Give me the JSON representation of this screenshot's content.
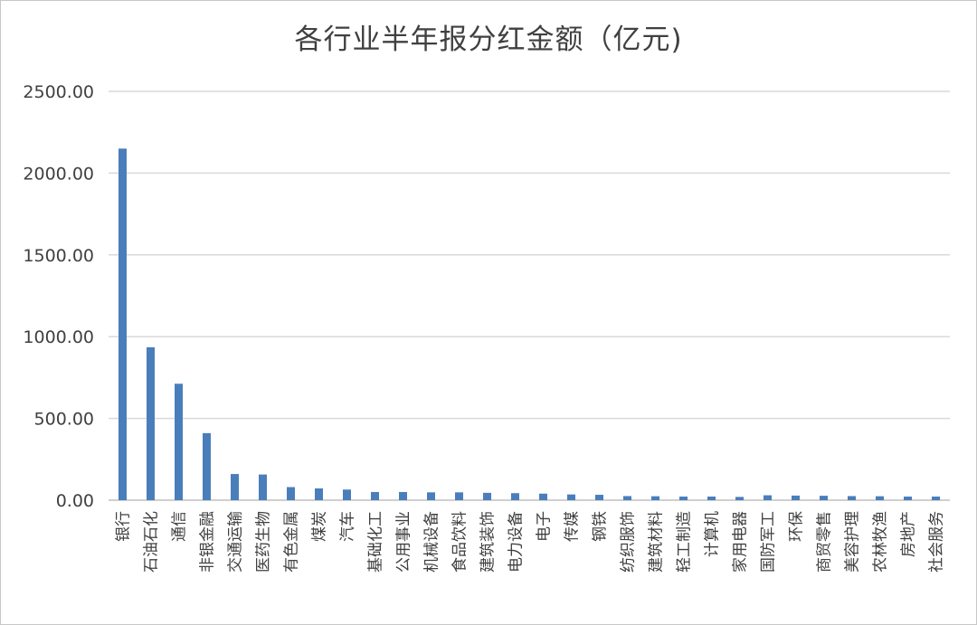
{
  "chart_data": {
    "type": "bar",
    "title": "各行业半年报分红金额（亿元)",
    "xlabel": "",
    "ylabel": "",
    "ylim": [
      0,
      2500
    ],
    "yticks": [
      "0.00",
      "500.00",
      "1000.00",
      "1500.00",
      "2000.00",
      "2500.00"
    ],
    "grid": true,
    "bar_color": "#4a7ebb",
    "grid_color": "#d9d9d9",
    "categories": [
      "银行",
      "石油石化",
      "通信",
      "非银金融",
      "交通运输",
      "医药生物",
      "有色金属",
      "煤炭",
      "汽车",
      "基础化工",
      "公用事业",
      "机械设备",
      "食品饮料",
      "建筑装饰",
      "电力设备",
      "电子",
      "传媒",
      "钢铁",
      "纺织服饰",
      "建筑材料",
      "轻工制造",
      "计算机",
      "家用电器",
      "国防军工",
      "环保",
      "商贸零售",
      "美容护理",
      "农林牧渔",
      "房地产",
      "社会服务"
    ],
    "values": [
      2150,
      935,
      712,
      410,
      160,
      157,
      80,
      72,
      65,
      50,
      50,
      48,
      48,
      45,
      43,
      40,
      35,
      33,
      25,
      24,
      22,
      22,
      20,
      30,
      28,
      27,
      25,
      24,
      22,
      22
    ]
  }
}
